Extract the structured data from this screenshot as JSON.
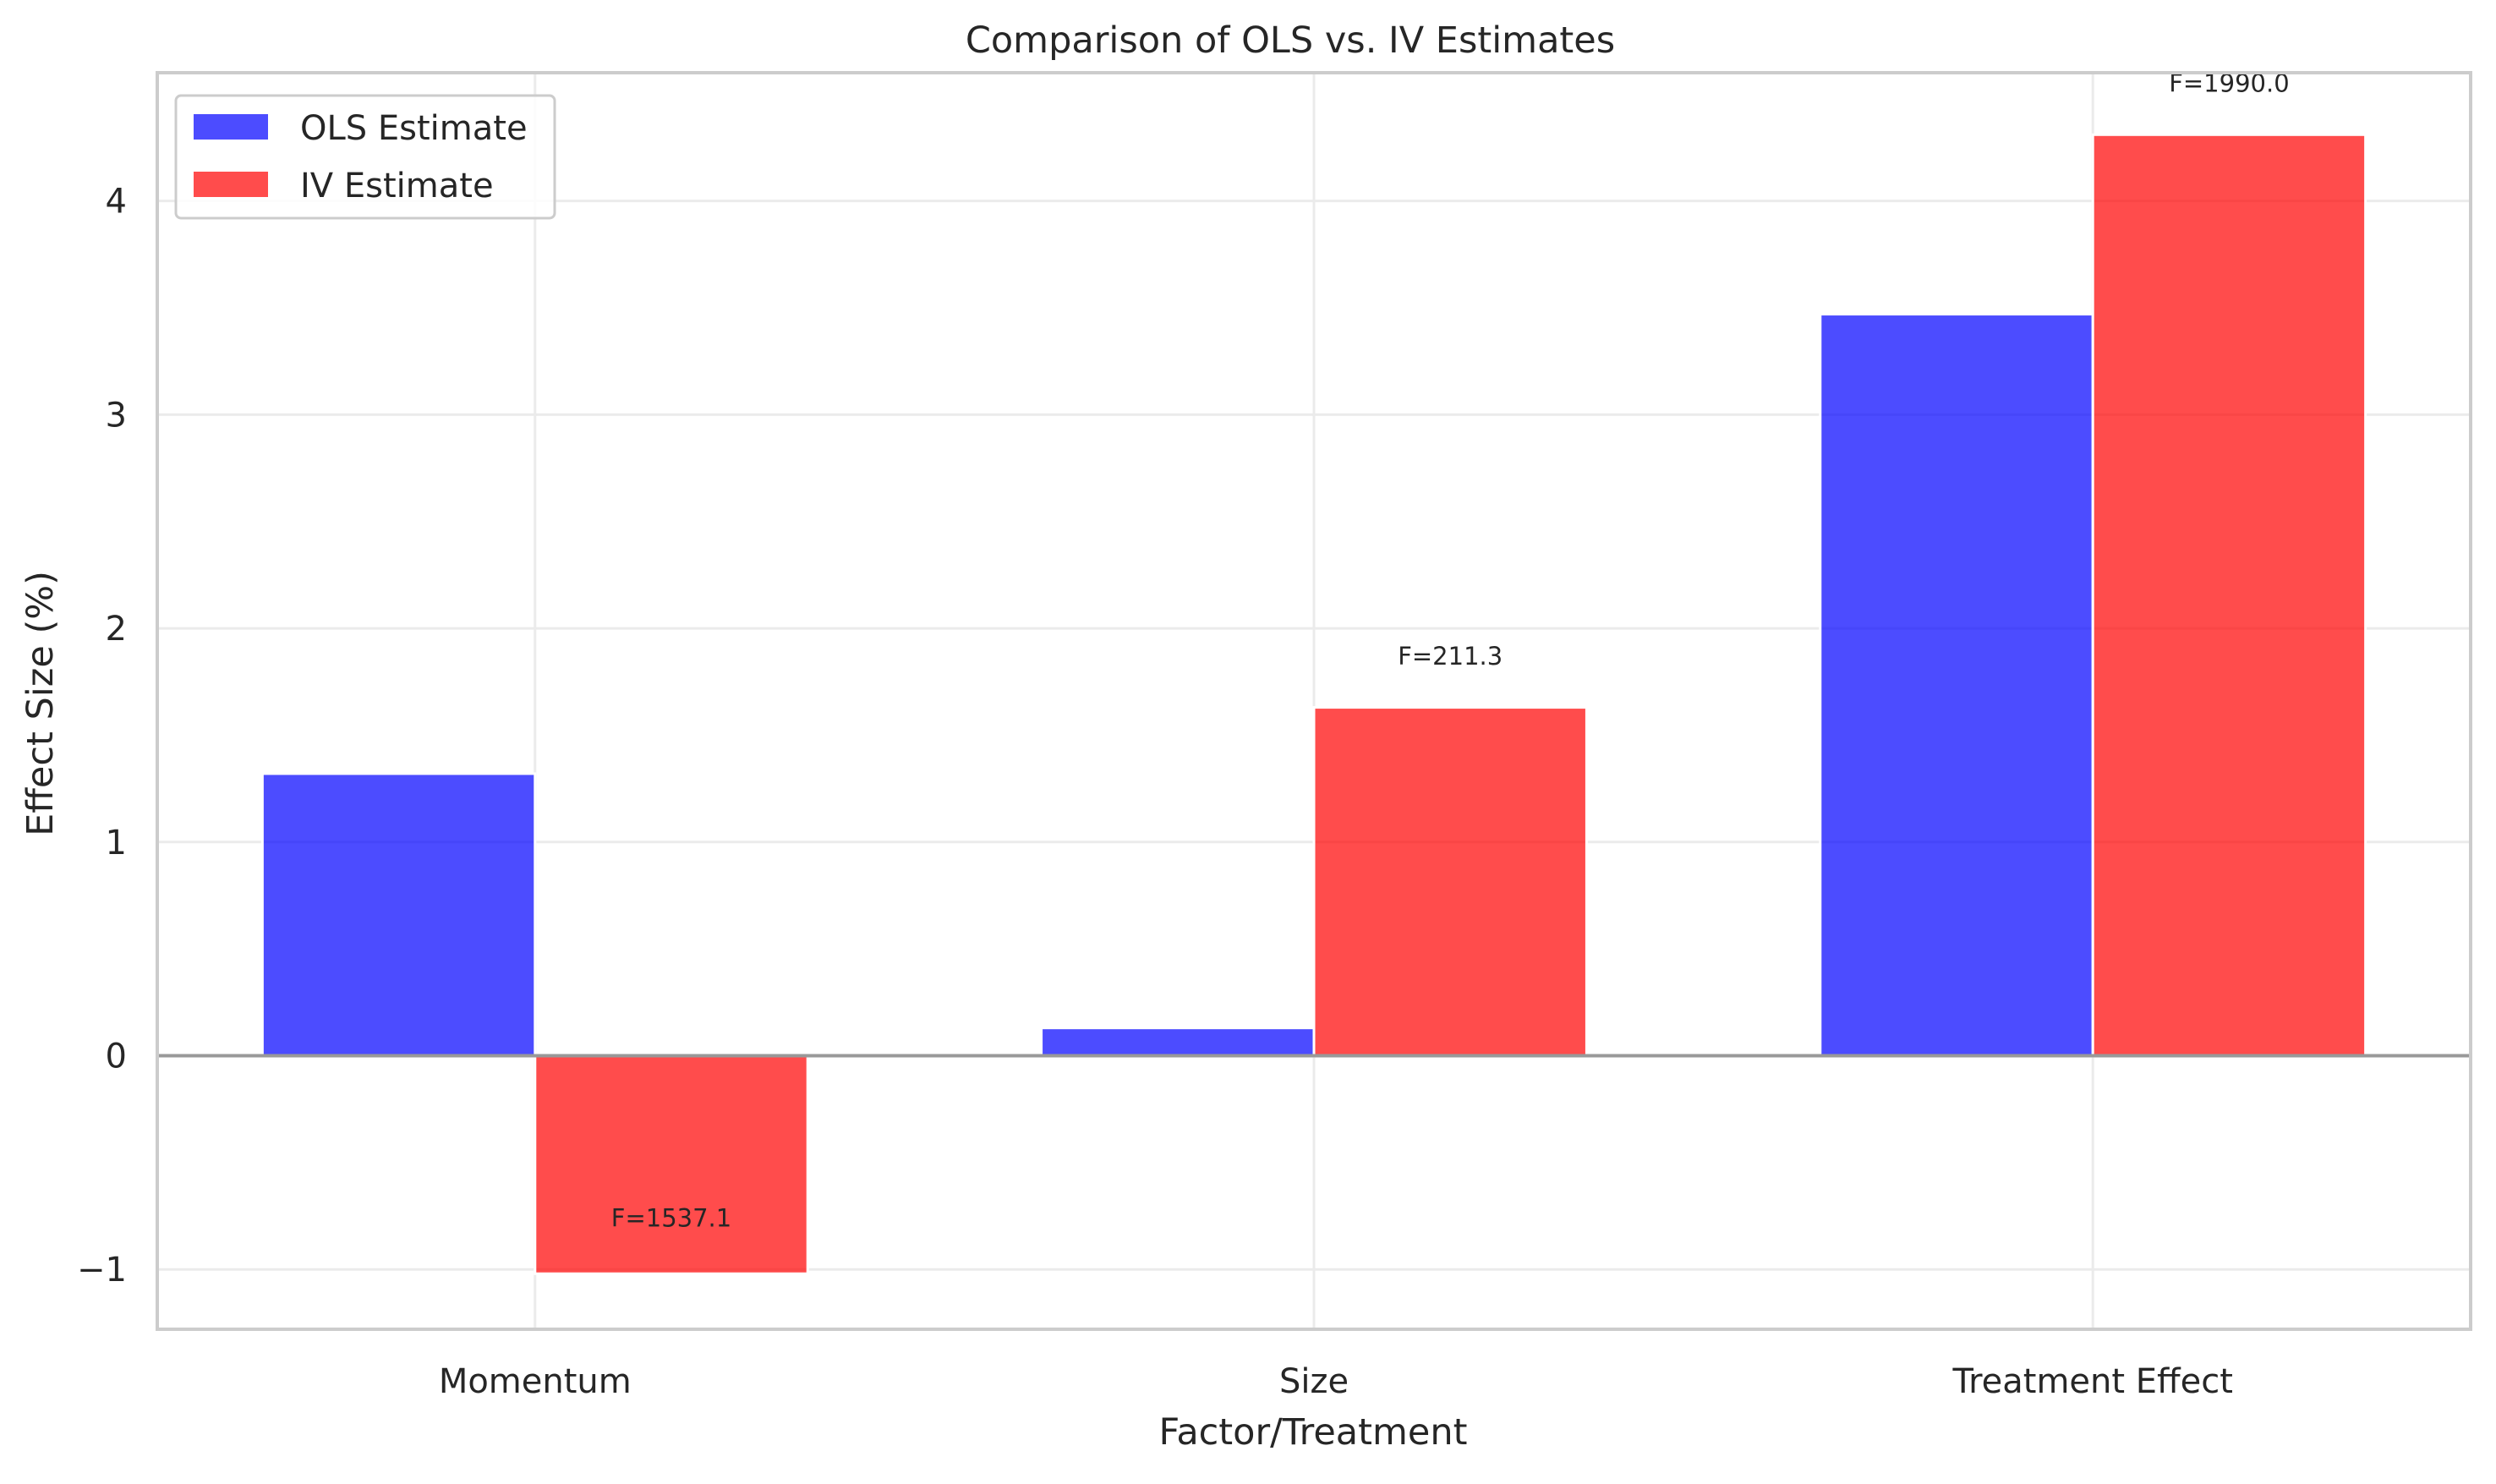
{
  "chart_data": {
    "type": "bar",
    "title": "Comparison of OLS vs. IV Estimates",
    "xlabel": "Factor/Treatment",
    "ylabel": "Effect Size (%)",
    "categories": [
      "Momentum",
      "Size",
      "Treatment Effect"
    ],
    "series": [
      {
        "name": "OLS Estimate",
        "color": "#0000ff",
        "values": [
          1.32,
          0.13,
          3.47
        ]
      },
      {
        "name": "IV Estimate",
        "color": "#ff0000",
        "values": [
          -1.02,
          1.63,
          4.31
        ]
      }
    ],
    "annotations": [
      {
        "category": "Momentum",
        "series": "IV Estimate",
        "text": "F=1537.1",
        "y": -0.8
      },
      {
        "category": "Size",
        "series": "IV Estimate",
        "text": "F=211.3",
        "y": 1.83
      },
      {
        "category": "Treatment Effect",
        "series": "IV Estimate",
        "text": "F=1990.0",
        "y": 4.51
      }
    ],
    "yticks": [
      -1,
      0,
      1,
      2,
      3,
      4
    ],
    "ytick_labels": [
      "−1",
      "0",
      "1",
      "2",
      "3",
      "4"
    ],
    "ylim": [
      -1.28,
      4.6
    ],
    "grid": true,
    "legend_position": "top-left",
    "bar_opacity": 0.7
  }
}
